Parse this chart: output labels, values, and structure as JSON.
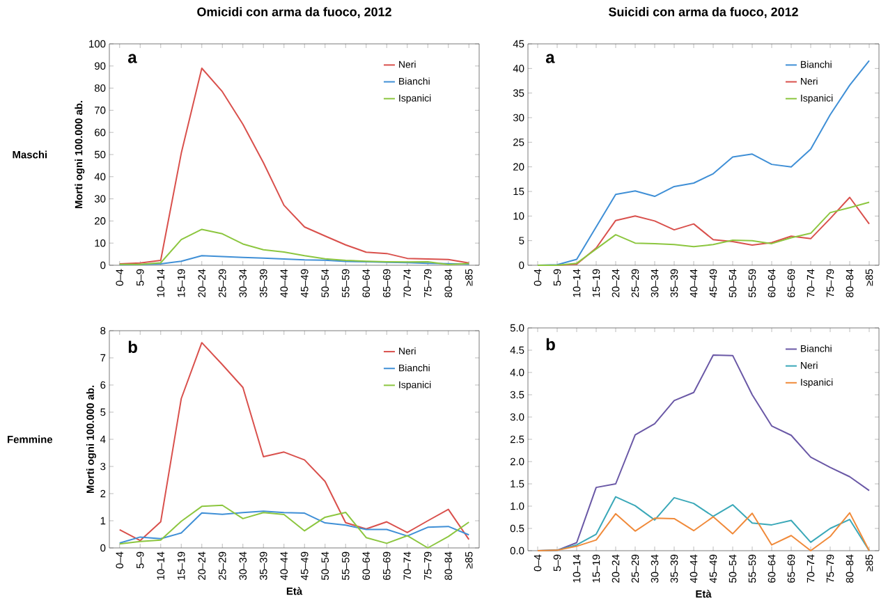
{
  "chart_data": [
    {
      "type": "line",
      "title": "Omicidi con arma da fuoco, 2012",
      "ylabel": "Morti ogni 100.000 ab.",
      "annotations": [
        "a",
        "Maschi"
      ],
      "legend": "top right",
      "categories": [
        "0–4",
        "5–9",
        "10–14",
        "15–19",
        "20–24",
        "25–29",
        "30–34",
        "35–39",
        "40–44",
        "45–49",
        "50–54",
        "55–59",
        "60–64",
        "65–69",
        "70–74",
        "75–79",
        "80–84",
        "≥85"
      ],
      "ylim": [
        0,
        100
      ],
      "yticks": [
        0,
        10,
        20,
        30,
        40,
        50,
        60,
        70,
        80,
        90,
        100
      ],
      "series": [
        {
          "name": "Neri",
          "color": "#d9504c",
          "values": [
            0.6,
            1.0,
            2.2,
            50.6,
            89,
            78.4,
            63.7,
            46.3,
            27.1,
            17.3,
            13.2,
            9.2,
            5.9,
            5.3,
            3.1,
            2.8,
            2.6,
            1.0
          ]
        },
        {
          "name": "Bianchi",
          "color": "#3f8fd6",
          "values": [
            0.2,
            0.3,
            0.6,
            1.8,
            4.3,
            3.9,
            3.5,
            3.2,
            2.8,
            2.4,
            2.3,
            1.7,
            1.6,
            1.3,
            1.2,
            0.9,
            0.7,
            0.5
          ]
        },
        {
          "name": "Ispanici",
          "color": "#8cc63f",
          "values": [
            0.4,
            0.4,
            1.1,
            11.6,
            16.2,
            14.2,
            9.6,
            7.0,
            6.0,
            4.3,
            2.9,
            2.2,
            1.8,
            1.6,
            1.5,
            1.6,
            0.3,
            0.8
          ]
        }
      ]
    },
    {
      "type": "line",
      "title": "Suicidi con arma da fuoco, 2012",
      "annotations": [
        "a"
      ],
      "legend": "top right",
      "categories": [
        "0–4",
        "5–9",
        "10–14",
        "15–19",
        "20–24",
        "25–29",
        "30–34",
        "35–39",
        "40–44",
        "45–49",
        "50–54",
        "55–59",
        "60–64",
        "65–69",
        "70–74",
        "75–79",
        "80–84",
        "≥85"
      ],
      "ylim": [
        0,
        45
      ],
      "yticks": [
        0,
        5,
        10,
        15,
        20,
        25,
        30,
        35,
        40,
        45
      ],
      "series": [
        {
          "name": "Bianchi",
          "color": "#3f8fd6",
          "values": [
            0,
            0.1,
            1.2,
            7.8,
            14.4,
            15.1,
            14.0,
            16.0,
            16.7,
            18.6,
            22.0,
            22.6,
            20.5,
            20.0,
            23.6,
            30.6,
            36.6,
            41.6
          ]
        },
        {
          "name": "Neri",
          "color": "#d9504c",
          "values": [
            0,
            0,
            0.2,
            3.5,
            9.1,
            10.0,
            9.0,
            7.2,
            8.4,
            5.2,
            4.8,
            4.1,
            4.6,
            5.9,
            5.4,
            9.5,
            13.8,
            8.4
          ]
        },
        {
          "name": "Ispanici",
          "color": "#8cc63f",
          "values": [
            0,
            0,
            0.4,
            3.3,
            6.2,
            4.5,
            4.4,
            4.2,
            3.8,
            4.2,
            5.1,
            5.0,
            4.4,
            5.6,
            6.5,
            10.7,
            11.7,
            12.8
          ]
        }
      ]
    },
    {
      "type": "line",
      "xlabel": "Età",
      "ylabel": "Morti ogni 100.000 ab.",
      "annotations": [
        "b",
        "Femmine"
      ],
      "legend": "top right",
      "categories": [
        "0–4",
        "5–9",
        "10–14",
        "15–19",
        "20–24",
        "25–29",
        "30–34",
        "35–39",
        "40–44",
        "45–49",
        "50–54",
        "55–59",
        "60–64",
        "65–69",
        "70–74",
        "75–79",
        "80–84",
        "≥85"
      ],
      "ylim": [
        0,
        8
      ],
      "yticks": [
        0,
        1,
        2,
        3,
        4,
        5,
        6,
        7,
        8
      ],
      "series": [
        {
          "name": "Neri",
          "color": "#d9504c",
          "values": [
            0.67,
            0.27,
            0.96,
            5.5,
            7.56,
            6.75,
            5.91,
            3.36,
            3.53,
            3.24,
            2.45,
            0.93,
            0.7,
            0.96,
            0.57,
            1.0,
            1.42,
            0.31
          ]
        },
        {
          "name": "Bianchi",
          "color": "#3f8fd6",
          "values": [
            0.18,
            0.4,
            0.34,
            0.55,
            1.29,
            1.24,
            1.3,
            1.35,
            1.3,
            1.28,
            0.92,
            0.84,
            0.68,
            0.68,
            0.44,
            0.76,
            0.79,
            0.48
          ]
        },
        {
          "name": "Ispanici",
          "color": "#8cc63f",
          "values": [
            0.15,
            0.24,
            0.29,
            0.98,
            1.53,
            1.57,
            1.08,
            1.3,
            1.23,
            0.63,
            1.13,
            1.31,
            0.38,
            0.17,
            0.45,
            0.0,
            0.42,
            0.95
          ]
        }
      ]
    },
    {
      "type": "line",
      "xlabel": "Età",
      "annotations": [
        "b"
      ],
      "legend": "top right",
      "categories": [
        "0–4",
        "5–9",
        "10–14",
        "15–19",
        "20–24",
        "25–29",
        "30–34",
        "35–39",
        "40–44",
        "45–49",
        "50–54",
        "55–59",
        "60–64",
        "65–69",
        "70–74",
        "75–79",
        "80–84",
        "≥85"
      ],
      "ylim": [
        0,
        5
      ],
      "yticks": [
        {
          "value": 0,
          "label": "0.0"
        },
        {
          "value": 0.5,
          "label": "0.5"
        },
        {
          "value": 1,
          "label": "1.0"
        },
        {
          "value": 1.5,
          "label": "1.5"
        },
        {
          "value": 2,
          "label": "2.0"
        },
        {
          "value": 2.5,
          "label": "2.5"
        },
        {
          "value": 3,
          "label": "3.0"
        },
        {
          "value": 3.5,
          "label": "3.5"
        },
        {
          "value": 4,
          "label": "4.0"
        },
        {
          "value": 4.5,
          "label": "4.5"
        },
        {
          "value": 5,
          "label": "5.0"
        }
      ],
      "series": [
        {
          "name": "Bianchi",
          "color": "#6a58a6",
          "values": [
            0,
            0.01,
            0.18,
            1.42,
            1.5,
            2.6,
            2.85,
            3.37,
            3.55,
            4.39,
            4.38,
            3.5,
            2.8,
            2.59,
            2.1,
            1.87,
            1.66,
            1.35
          ]
        },
        {
          "name": "Neri",
          "color": "#3aa8b8",
          "values": [
            0,
            0.01,
            0.13,
            0.37,
            1.21,
            1.01,
            0.69,
            1.19,
            1.06,
            0.77,
            1.03,
            0.62,
            0.58,
            0.68,
            0.19,
            0.5,
            0.7,
            0.0
          ]
        },
        {
          "name": "Ispanici",
          "color": "#f08a3a",
          "values": [
            0,
            0.01,
            0.1,
            0.24,
            0.83,
            0.44,
            0.73,
            0.72,
            0.45,
            0.76,
            0.38,
            0.84,
            0.13,
            0.34,
            0.0,
            0.32,
            0.85,
            0.0
          ]
        }
      ]
    }
  ]
}
